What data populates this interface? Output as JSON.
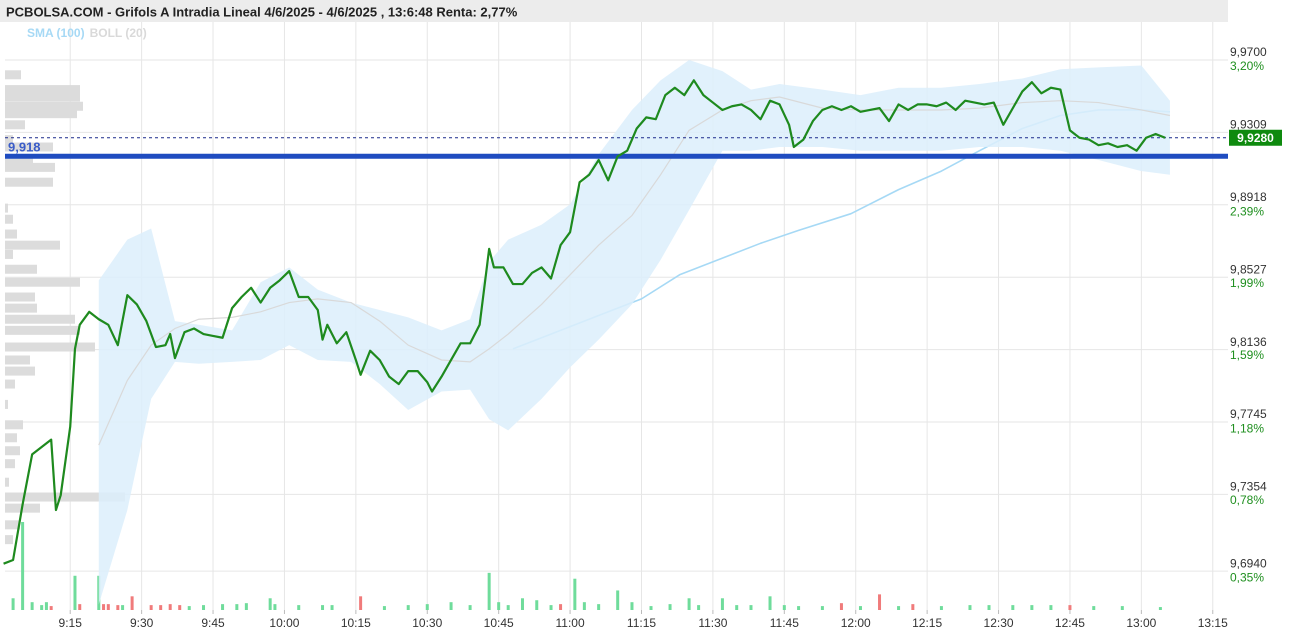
{
  "chart_data": {
    "type": "line",
    "title": "PCBOLSA.COM - Grifols A Intradia Lineal 4/6/2025 - 4/6/2025 , 13:6:48 Renta: 2,77%",
    "grid": true,
    "xlim": [
      541.3,
      798.2
    ],
    "xticks": [
      {
        "value": 555,
        "label": "9:15"
      },
      {
        "value": 570,
        "label": "9:30"
      },
      {
        "value": 585,
        "label": "9:45"
      },
      {
        "value": 600,
        "label": "10:00"
      },
      {
        "value": 615,
        "label": "10:15"
      },
      {
        "value": 630,
        "label": "10:30"
      },
      {
        "value": 645,
        "label": "10:45"
      },
      {
        "value": 660,
        "label": "11:00"
      },
      {
        "value": 675,
        "label": "11:15"
      },
      {
        "value": 690,
        "label": "11:30"
      },
      {
        "value": 705,
        "label": "11:45"
      },
      {
        "value": 720,
        "label": "12:00"
      },
      {
        "value": 735,
        "label": "12:15"
      },
      {
        "value": 750,
        "label": "12:30"
      },
      {
        "value": 765,
        "label": "12:45"
      },
      {
        "value": 780,
        "label": "13:00"
      },
      {
        "value": 795,
        "label": "13:15"
      }
    ],
    "ylim": [
      9.673,
      9.9905
    ],
    "yticks": [
      {
        "value": 9.97,
        "label": "9,9700"
      },
      {
        "value": 9.9309,
        "label": "9,9309"
      },
      {
        "value": 9.8918,
        "label": "9,8918"
      },
      {
        "value": 9.8527,
        "label": "9,8527"
      },
      {
        "value": 9.8136,
        "label": "9,8136"
      },
      {
        "value": 9.7745,
        "label": "9,7745"
      },
      {
        "value": 9.7354,
        "label": "9,7354"
      },
      {
        "value": 9.694,
        "label": "9,6940"
      }
    ],
    "y2lim": [
      0.133,
      3.412
    ],
    "y2ticks": [
      {
        "value": 3.2,
        "label": "3,20%"
      },
      {
        "value": 2.39,
        "label": "2,39%"
      },
      {
        "value": 1.99,
        "label": "1,99%"
      },
      {
        "value": 1.59,
        "label": "1,59%"
      },
      {
        "value": 1.18,
        "label": "1,18%"
      },
      {
        "value": 0.78,
        "label": "0,78%"
      },
      {
        "value": 0.35,
        "label": "0,35%"
      }
    ],
    "series": [
      {
        "type": "line",
        "color": "#1e8a1e",
        "x": [
          541,
          543,
          545,
          547,
          549,
          551,
          552,
          553,
          555,
          556,
          557,
          559,
          561,
          563,
          565,
          567,
          569,
          571,
          573,
          575,
          576,
          577,
          579,
          581,
          583,
          585,
          587,
          589,
          591,
          593,
          595,
          597,
          599,
          601,
          603,
          605,
          607,
          608,
          609,
          611,
          613,
          615,
          616,
          618,
          620,
          622,
          624,
          626,
          628,
          630,
          631,
          633,
          635,
          637,
          639,
          641,
          643,
          644,
          646,
          648,
          650,
          652,
          654,
          656,
          658,
          660,
          662,
          664,
          666,
          668,
          670,
          672,
          674,
          676,
          678,
          680,
          682,
          684,
          686,
          688,
          690,
          692,
          694,
          696,
          698,
          700,
          702,
          704,
          706,
          707,
          709,
          711,
          713,
          715,
          717,
          719,
          721,
          723,
          725,
          727,
          729,
          731,
          733,
          735,
          737,
          739,
          741,
          743,
          745,
          747,
          749,
          751,
          753,
          755,
          757,
          759,
          761,
          763,
          765,
          767,
          769,
          771,
          773,
          775,
          777,
          779,
          781,
          783,
          785
        ],
        "values": [
          9.698,
          9.7,
          9.73,
          9.757,
          9.761,
          9.765,
          9.727,
          9.735,
          9.772,
          9.814,
          9.827,
          9.834,
          9.83,
          9.827,
          9.816,
          9.843,
          9.838,
          9.829,
          9.815,
          9.816,
          9.822,
          9.809,
          9.823,
          9.825,
          9.822,
          9.821,
          9.82,
          9.836,
          9.842,
          9.847,
          9.839,
          9.847,
          9.851,
          9.856,
          9.842,
          9.842,
          9.835,
          9.819,
          9.827,
          9.817,
          9.823,
          9.808,
          9.8,
          9.813,
          9.808,
          9.799,
          9.795,
          9.802,
          9.802,
          9.796,
          9.791,
          9.799,
          9.808,
          9.817,
          9.817,
          9.827,
          9.868,
          9.858,
          9.858,
          9.849,
          9.849,
          9.855,
          9.858,
          9.852,
          9.87,
          9.877,
          9.904,
          9.908,
          9.916,
          9.905,
          9.918,
          9.921,
          9.933,
          9.939,
          9.938,
          9.951,
          9.955,
          9.951,
          9.959,
          9.951,
          9.947,
          9.943,
          9.945,
          9.946,
          9.943,
          9.938,
          9.948,
          9.946,
          9.935,
          9.923,
          9.927,
          9.937,
          9.943,
          9.945,
          9.943,
          9.945,
          9.942,
          9.943,
          9.944,
          9.937,
          9.946,
          9.943,
          9.946,
          9.946,
          9.945,
          9.947,
          9.943,
          9.948,
          9.947,
          9.946,
          9.947,
          9.935,
          9.944,
          9.953,
          9.958,
          9.952,
          9.955,
          9.954,
          9.932,
          9.928,
          9.927,
          9.924,
          9.925,
          9.923,
          9.924,
          9.921,
          9.928,
          9.93,
          9.928
        ]
      },
      {
        "type": "line",
        "name": "SMA (100)",
        "color": "#a6d9f5",
        "x": [
          648,
          658,
          666,
          675,
          683,
          692,
          700,
          708,
          719,
          729,
          738,
          746,
          755,
          763,
          771,
          780,
          786
        ],
        "values": [
          9.814,
          9.824,
          9.832,
          9.841,
          9.854,
          9.863,
          9.871,
          9.878,
          9.887,
          9.9,
          9.91,
          9.921,
          9.933,
          9.94,
          9.943,
          9.943,
          9.942
        ]
      },
      {
        "type": "band",
        "name": "BOLL (20)",
        "color": "#d9d9d9",
        "fill": "#dceffb",
        "x": [
          561,
          567,
          572,
          577,
          582,
          589,
          595,
          601,
          607,
          614,
          620,
          626,
          633,
          639,
          643,
          647,
          654,
          660,
          666,
          673,
          679,
          685,
          692,
          698,
          704,
          713,
          721,
          729,
          738,
          746,
          755,
          763,
          771,
          780,
          786
        ],
        "upper": [
          9.851,
          9.873,
          9.879,
          9.829,
          9.827,
          9.824,
          9.85,
          9.858,
          9.846,
          9.839,
          9.835,
          9.831,
          9.824,
          9.83,
          9.861,
          9.873,
          9.881,
          9.892,
          9.919,
          9.943,
          9.959,
          9.97,
          9.964,
          9.954,
          9.957,
          9.954,
          9.951,
          9.955,
          9.955,
          9.957,
          9.96,
          9.965,
          9.966,
          9.967,
          9.948
        ],
        "middle": [
          9.762,
          9.797,
          9.816,
          9.825,
          9.83,
          9.831,
          9.834,
          9.839,
          9.841,
          9.839,
          9.829,
          9.816,
          9.808,
          9.807,
          9.814,
          9.822,
          9.838,
          9.854,
          9.87,
          9.886,
          9.908,
          9.932,
          9.943,
          9.948,
          9.95,
          9.944,
          9.943,
          9.943,
          9.943,
          9.944,
          9.947,
          9.948,
          9.947,
          9.943,
          9.94
        ],
        "lower": [
          9.676,
          9.727,
          9.787,
          9.807,
          9.806,
          9.807,
          9.808,
          9.816,
          9.808,
          9.807,
          9.795,
          9.781,
          9.791,
          9.792,
          9.776,
          9.77,
          9.787,
          9.804,
          9.819,
          9.838,
          9.862,
          9.889,
          9.921,
          9.921,
          9.923,
          9.923,
          9.921,
          9.921,
          9.921,
          9.923,
          9.923,
          9.921,
          9.916,
          9.91,
          9.908
        ]
      }
    ],
    "reference_line": {
      "value": 9.918,
      "label": "9,918",
      "color": "#1f4cc0",
      "label_color": "#3a5cc8"
    },
    "last_price": {
      "value": 9.928,
      "label": "9,9280",
      "color": "#0e8a0e",
      "line_color": "#1c2a8c"
    },
    "volume": {
      "x": [
        543,
        545,
        547,
        549,
        550,
        551,
        556,
        557,
        561,
        562,
        563,
        565,
        566,
        568,
        572,
        574,
        576,
        578,
        580,
        583,
        587,
        590,
        592,
        597,
        598,
        603,
        608,
        610,
        616,
        621,
        626,
        630,
        635,
        639,
        643,
        645,
        647,
        650,
        653,
        656,
        658,
        661,
        663,
        666,
        670,
        673,
        677,
        681,
        685,
        687,
        692,
        695,
        698,
        702,
        705,
        708,
        713,
        717,
        721,
        725,
        729,
        732,
        738,
        744,
        748,
        753,
        757,
        761,
        765,
        770,
        776,
        784
      ],
      "values": [
        12,
        90,
        8,
        5,
        8,
        4,
        35,
        6,
        35,
        6,
        6,
        5,
        5,
        14,
        5,
        5,
        6,
        5,
        4,
        5,
        6,
        6,
        7,
        12,
        6,
        5,
        5,
        5,
        14,
        4,
        5,
        6,
        8,
        5,
        38,
        8,
        5,
        12,
        10,
        5,
        6,
        32,
        8,
        6,
        20,
        8,
        4,
        6,
        12,
        5,
        12,
        5,
        5,
        14,
        5,
        4,
        4,
        7,
        4,
        16,
        4,
        6,
        4,
        5,
        5,
        5,
        5,
        5,
        5,
        4,
        4,
        3
      ],
      "colors": [
        "#6fdc9b",
        "#6fdc9b",
        "#6fdc9b",
        "#6fdc9b",
        "#6fdc9b",
        "#f07b7b",
        "#6fdc9b",
        "#f07b7b",
        "#6fdc9b",
        "#f07b7b",
        "#f07b7b",
        "#f07b7b",
        "#6fdc9b",
        "#f07b7b",
        "#f07b7b",
        "#f07b7b",
        "#f07b7b",
        "#f07b7b",
        "#6fdc9b",
        "#6fdc9b",
        "#6fdc9b",
        "#6fdc9b",
        "#6fdc9b",
        "#6fdc9b",
        "#6fdc9b",
        "#6fdc9b",
        "#6fdc9b",
        "#6fdc9b",
        "#f07b7b",
        "#6fdc9b",
        "#6fdc9b",
        "#6fdc9b",
        "#6fdc9b",
        "#6fdc9b",
        "#6fdc9b",
        "#6fdc9b",
        "#6fdc9b",
        "#6fdc9b",
        "#6fdc9b",
        "#6fdc9b",
        "#f07b7b",
        "#6fdc9b",
        "#6fdc9b",
        "#6fdc9b",
        "#6fdc9b",
        "#6fdc9b",
        "#6fdc9b",
        "#6fdc9b",
        "#6fdc9b",
        "#6fdc9b",
        "#6fdc9b",
        "#6fdc9b",
        "#6fdc9b",
        "#6fdc9b",
        "#6fdc9b",
        "#6fdc9b",
        "#6fdc9b",
        "#f07b7b",
        "#6fdc9b",
        "#f07b7b",
        "#6fdc9b",
        "#f07b7b",
        "#6fdc9b",
        "#6fdc9b",
        "#6fdc9b",
        "#6fdc9b",
        "#6fdc9b",
        "#6fdc9b",
        "#f07b7b",
        "#6fdc9b",
        "#6fdc9b",
        "#6fdc9b"
      ]
    },
    "price_profile": {
      "color": "#dcdcdc",
      "prices": [
        9.962,
        9.954,
        9.95,
        9.945,
        9.941,
        9.935,
        9.927,
        9.923,
        9.916,
        9.912,
        9.904,
        9.89,
        9.884,
        9.876,
        9.87,
        9.865,
        9.857,
        9.85,
        9.842,
        9.836,
        9.83,
        9.824,
        9.815,
        9.808,
        9.802,
        9.795,
        9.784,
        9.773,
        9.766,
        9.759,
        9.752,
        9.742,
        9.734,
        9.728,
        9.719,
        9.711
      ],
      "values": [
        16,
        75,
        75,
        78,
        72,
        20,
        8,
        48,
        28,
        50,
        48,
        3,
        8,
        12,
        55,
        8,
        32,
        75,
        30,
        32,
        70,
        75,
        90,
        25,
        30,
        10,
        3,
        18,
        12,
        15,
        10,
        4,
        120,
        35,
        15,
        8
      ]
    }
  }
}
